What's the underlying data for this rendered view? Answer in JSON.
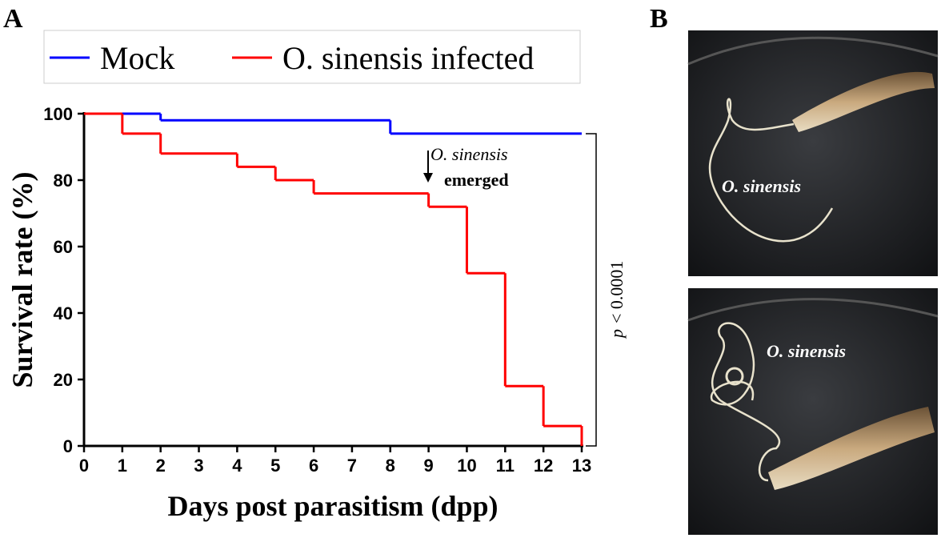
{
  "panel_labels": [
    "A",
    "B"
  ],
  "chart_data": {
    "type": "step",
    "xlabel": "Days post parasitism (dpp)",
    "ylabel": "Survival rate (%)",
    "series": [
      {
        "name": "Mock",
        "color": "#0000ff",
        "x": [
          0,
          2,
          8,
          13
        ],
        "values": [
          100,
          98,
          94,
          94
        ]
      },
      {
        "name": "O. sinensis infected",
        "color": "#ff0000",
        "x": [
          0,
          1,
          2,
          4,
          5,
          6,
          9,
          10,
          11,
          12,
          13
        ],
        "values": [
          100,
          94,
          88,
          84,
          80,
          76,
          72,
          52,
          18,
          6,
          0
        ]
      }
    ],
    "xlim": [
      0,
      13
    ],
    "xticks": [
      0,
      1,
      2,
      3,
      4,
      5,
      6,
      7,
      8,
      9,
      10,
      11,
      12,
      13
    ],
    "ylim": [
      0,
      100
    ],
    "yticks": [
      0,
      20,
      40,
      60,
      80,
      100
    ],
    "annotations": [
      "O. sinensis",
      "emerged"
    ],
    "p_label": "p",
    "p_value": "< 0.0001"
  },
  "photo_labels": [
    "O. sinensis",
    "O. sinensis"
  ]
}
